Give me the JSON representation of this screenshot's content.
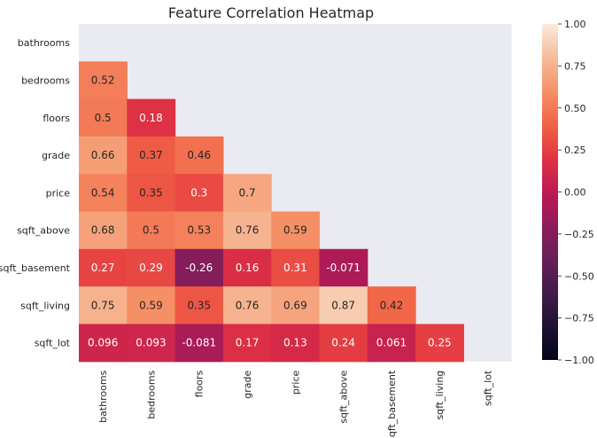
{
  "chart_data": {
    "type": "heatmap",
    "title": "Feature Correlation Heatmap",
    "variables": [
      "bathrooms",
      "bedrooms",
      "floors",
      "grade",
      "price",
      "sqft_above",
      "sqft_basement",
      "sqft_living",
      "sqft_lot"
    ],
    "mask": "upper-triangle-including-diagonal",
    "cells": [
      {
        "row": "bedrooms",
        "col": "bathrooms",
        "value": 0.52,
        "label": "0.52"
      },
      {
        "row": "floors",
        "col": "bathrooms",
        "value": 0.5,
        "label": "0.5"
      },
      {
        "row": "floors",
        "col": "bedrooms",
        "value": 0.18,
        "label": "0.18"
      },
      {
        "row": "grade",
        "col": "bathrooms",
        "value": 0.66,
        "label": "0.66"
      },
      {
        "row": "grade",
        "col": "bedrooms",
        "value": 0.37,
        "label": "0.37"
      },
      {
        "row": "grade",
        "col": "floors",
        "value": 0.46,
        "label": "0.46"
      },
      {
        "row": "price",
        "col": "bathrooms",
        "value": 0.54,
        "label": "0.54"
      },
      {
        "row": "price",
        "col": "bedrooms",
        "value": 0.35,
        "label": "0.35"
      },
      {
        "row": "price",
        "col": "floors",
        "value": 0.3,
        "label": "0.3"
      },
      {
        "row": "price",
        "col": "grade",
        "value": 0.7,
        "label": "0.7"
      },
      {
        "row": "sqft_above",
        "col": "bathrooms",
        "value": 0.68,
        "label": "0.68"
      },
      {
        "row": "sqft_above",
        "col": "bedrooms",
        "value": 0.5,
        "label": "0.5"
      },
      {
        "row": "sqft_above",
        "col": "floors",
        "value": 0.53,
        "label": "0.53"
      },
      {
        "row": "sqft_above",
        "col": "grade",
        "value": 0.76,
        "label": "0.76"
      },
      {
        "row": "sqft_above",
        "col": "price",
        "value": 0.59,
        "label": "0.59"
      },
      {
        "row": "sqft_basement",
        "col": "bathrooms",
        "value": 0.27,
        "label": "0.27"
      },
      {
        "row": "sqft_basement",
        "col": "bedrooms",
        "value": 0.29,
        "label": "0.29"
      },
      {
        "row": "sqft_basement",
        "col": "floors",
        "value": -0.26,
        "label": "-0.26"
      },
      {
        "row": "sqft_basement",
        "col": "grade",
        "value": 0.16,
        "label": "0.16"
      },
      {
        "row": "sqft_basement",
        "col": "price",
        "value": 0.31,
        "label": "0.31"
      },
      {
        "row": "sqft_basement",
        "col": "sqft_above",
        "value": -0.071,
        "label": "-0.071"
      },
      {
        "row": "sqft_living",
        "col": "bathrooms",
        "value": 0.75,
        "label": "0.75"
      },
      {
        "row": "sqft_living",
        "col": "bedrooms",
        "value": 0.59,
        "label": "0.59"
      },
      {
        "row": "sqft_living",
        "col": "floors",
        "value": 0.35,
        "label": "0.35"
      },
      {
        "row": "sqft_living",
        "col": "grade",
        "value": 0.76,
        "label": "0.76"
      },
      {
        "row": "sqft_living",
        "col": "price",
        "value": 0.69,
        "label": "0.69"
      },
      {
        "row": "sqft_living",
        "col": "sqft_above",
        "value": 0.87,
        "label": "0.87"
      },
      {
        "row": "sqft_living",
        "col": "sqft_basement",
        "value": 0.42,
        "label": "0.42"
      },
      {
        "row": "sqft_lot",
        "col": "bathrooms",
        "value": 0.096,
        "label": "0.096"
      },
      {
        "row": "sqft_lot",
        "col": "bedrooms",
        "value": 0.093,
        "label": "0.093"
      },
      {
        "row": "sqft_lot",
        "col": "floors",
        "value": -0.081,
        "label": "-0.081"
      },
      {
        "row": "sqft_lot",
        "col": "grade",
        "value": 0.17,
        "label": "0.17"
      },
      {
        "row": "sqft_lot",
        "col": "price",
        "value": 0.13,
        "label": "0.13"
      },
      {
        "row": "sqft_lot",
        "col": "sqft_above",
        "value": 0.24,
        "label": "0.24"
      },
      {
        "row": "sqft_lot",
        "col": "sqft_basement",
        "value": 0.061,
        "label": "0.061"
      },
      {
        "row": "sqft_lot",
        "col": "sqft_living",
        "value": 0.25,
        "label": "0.25"
      }
    ],
    "colorbar": {
      "colormap": "rocket",
      "vmin": -1.0,
      "vmax": 1.0,
      "ticks": [
        1.0,
        0.75,
        0.5,
        0.25,
        0.0,
        -0.25,
        -0.5,
        -0.75,
        -1.0
      ],
      "tick_labels": [
        "1.00",
        "0.75",
        "0.50",
        "0.25",
        "0.00",
        "−0.25",
        "−0.50",
        "−0.75",
        "−1.00"
      ]
    },
    "background_color": "#eaeaf2",
    "grid": false,
    "legend": "colorbar-right"
  }
}
